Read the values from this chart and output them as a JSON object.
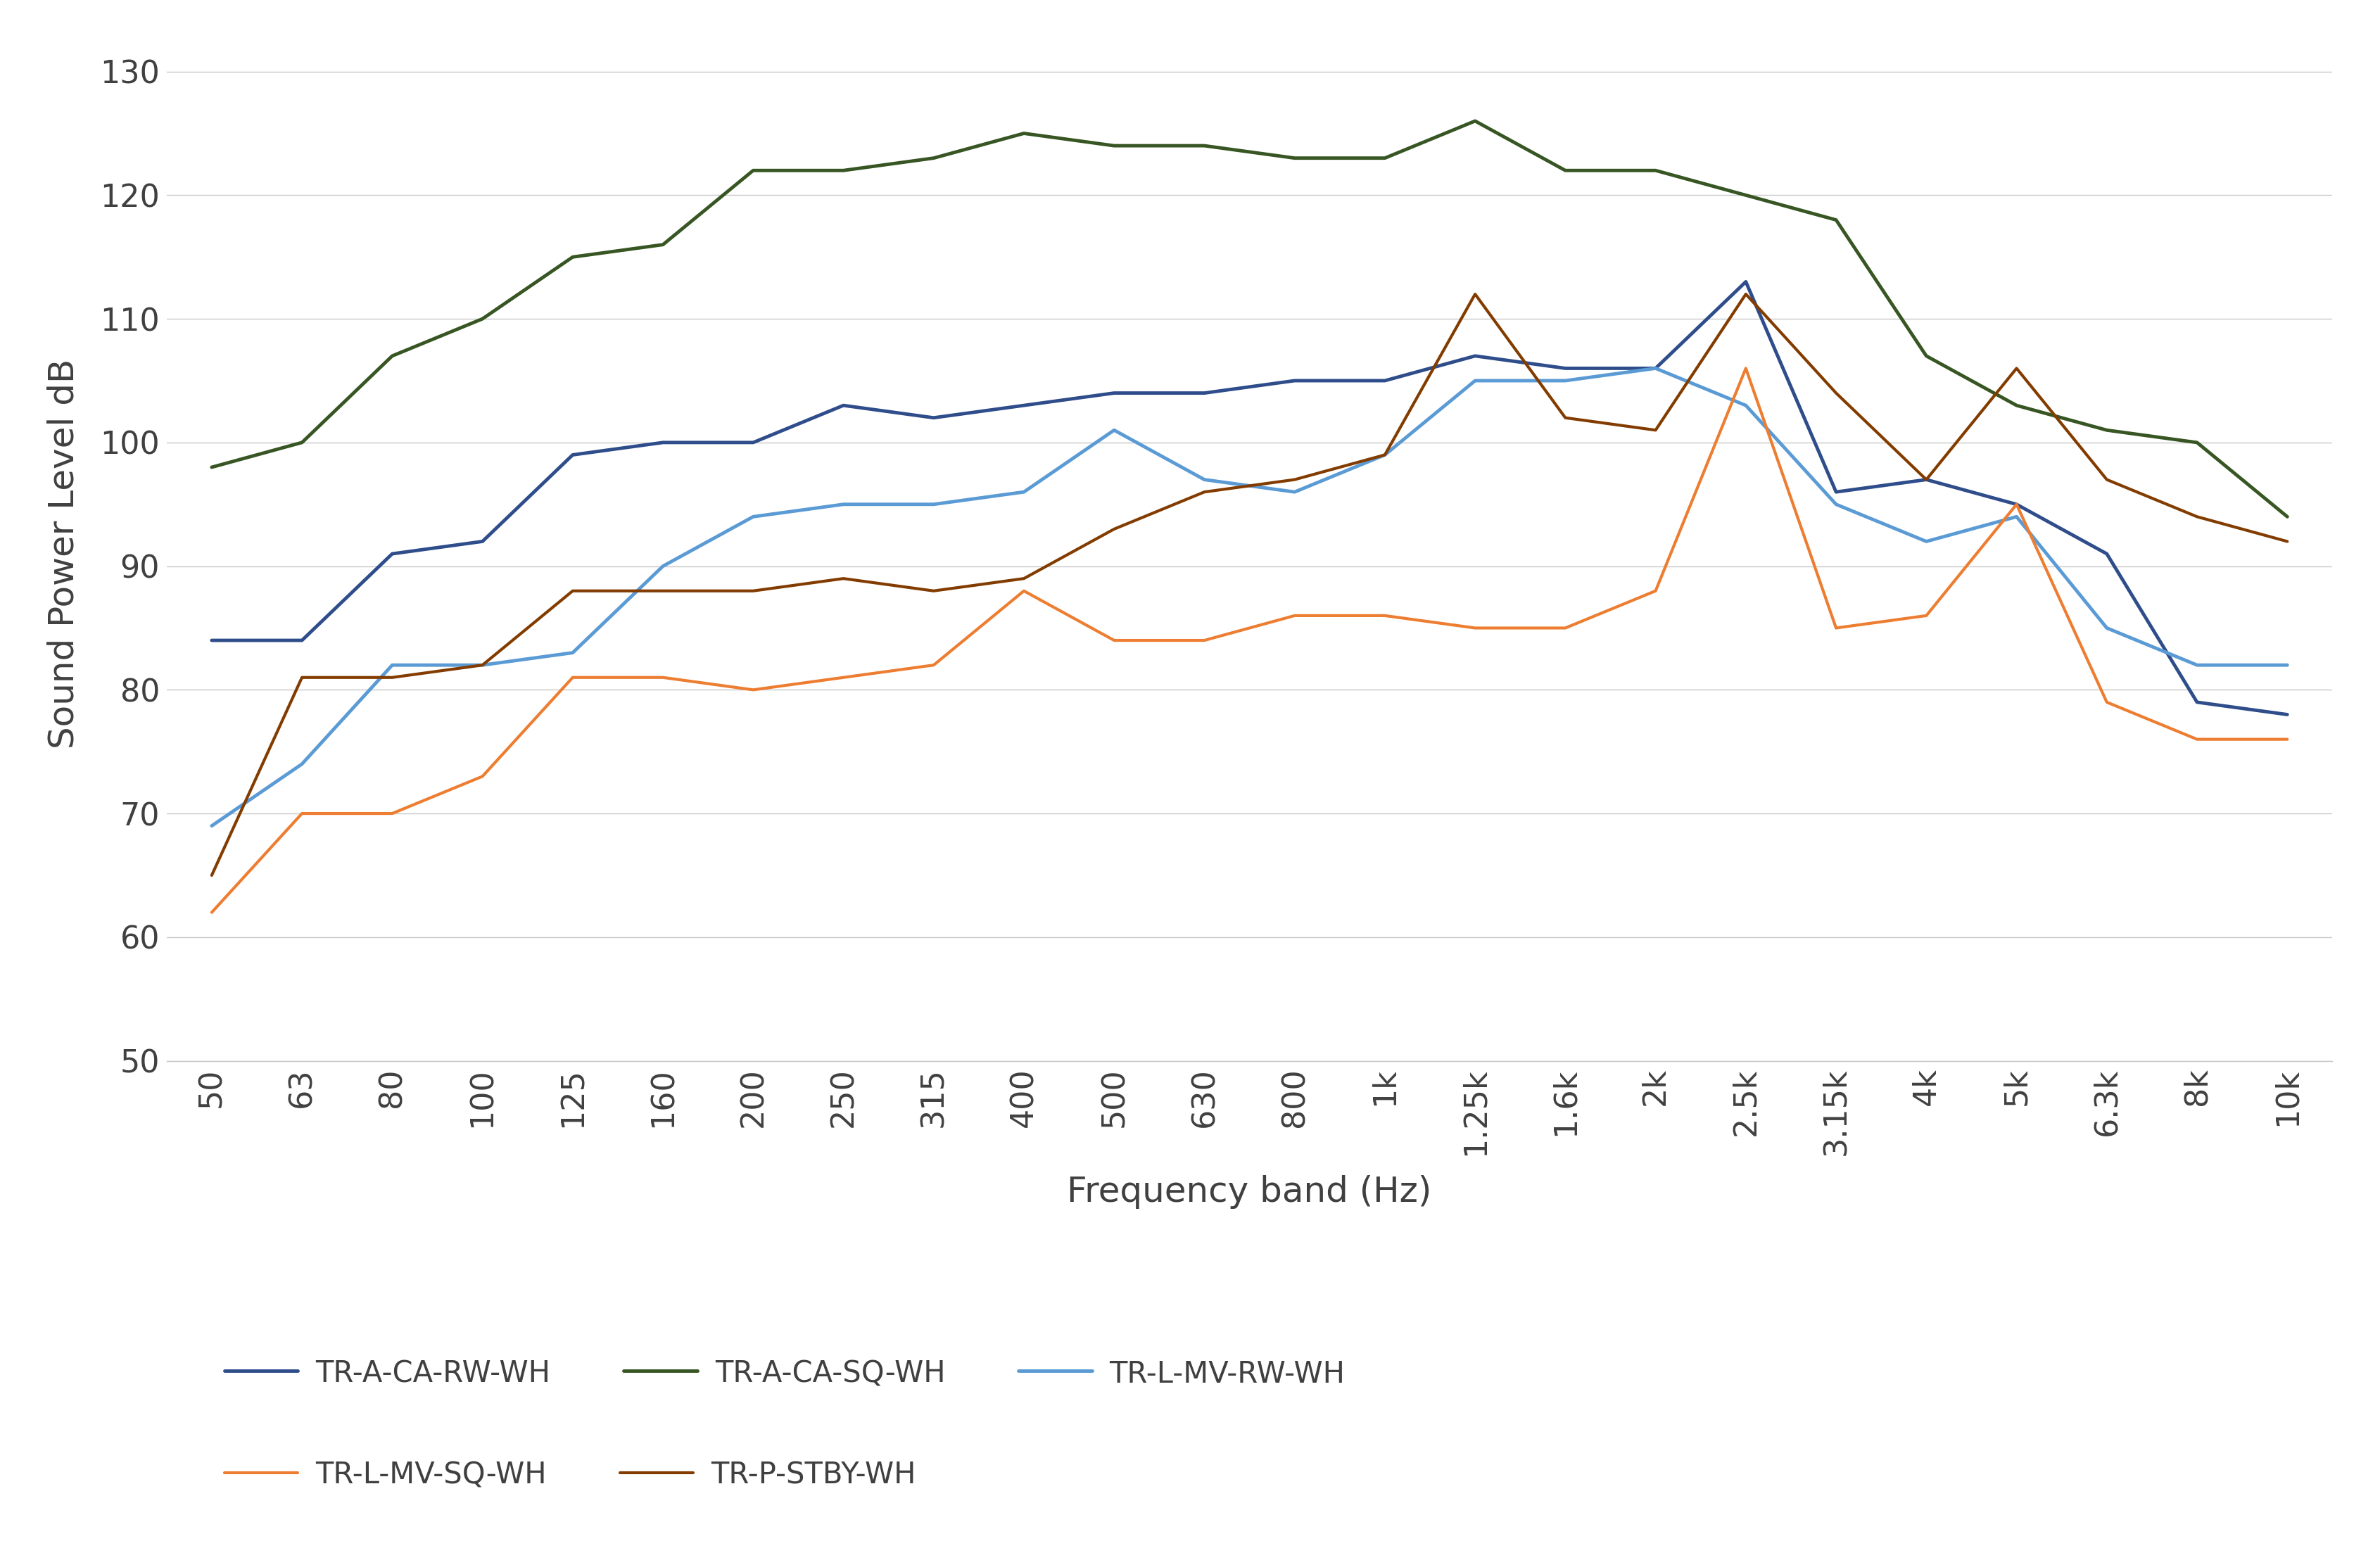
{
  "title": "",
  "xlabel": "Frequency band (Hz)",
  "ylabel": "Sound Power Level dB",
  "x_labels": [
    "50",
    "63",
    "80",
    "100",
    "125",
    "160",
    "200",
    "250",
    "315",
    "400",
    "500",
    "630",
    "800",
    "1k",
    "1.25k",
    "1.6k",
    "2k",
    "2.5k",
    "3.15k",
    "4k",
    "5k",
    "6.3k",
    "8k",
    "10k"
  ],
  "ylim": [
    50,
    132
  ],
  "yticks": [
    50,
    60,
    70,
    80,
    90,
    100,
    110,
    120,
    130
  ],
  "series": [
    {
      "label": "TR-A-CA-RW-WH",
      "color": "#2E4D8A",
      "linewidth": 3.5,
      "values": [
        84,
        84,
        91,
        92,
        99,
        100,
        100,
        103,
        102,
        103,
        104,
        104,
        105,
        105,
        107,
        106,
        106,
        113,
        96,
        97,
        95,
        91,
        79,
        78
      ]
    },
    {
      "label": "TR-A-CA-SQ-WH",
      "color": "#375623",
      "linewidth": 3.5,
      "values": [
        98,
        100,
        107,
        110,
        115,
        116,
        122,
        122,
        123,
        125,
        124,
        124,
        123,
        123,
        126,
        122,
        122,
        120,
        118,
        107,
        103,
        101,
        100,
        94
      ]
    },
    {
      "label": "TR-L-MV-RW-WH",
      "color": "#5B9BD5",
      "linewidth": 3.5,
      "values": [
        69,
        74,
        82,
        82,
        83,
        90,
        94,
        95,
        95,
        96,
        101,
        97,
        96,
        99,
        105,
        105,
        106,
        103,
        95,
        92,
        94,
        85,
        82,
        82
      ]
    },
    {
      "label": "TR-L-MV-SQ-WH",
      "color": "#ED7D31",
      "linewidth": 3.0,
      "values": [
        62,
        70,
        70,
        73,
        81,
        81,
        80,
        81,
        82,
        88,
        84,
        84,
        86,
        86,
        85,
        85,
        88,
        106,
        85,
        86,
        95,
        79,
        76,
        76
      ]
    },
    {
      "label": "TR-P-STBY-WH",
      "color": "#833C00",
      "linewidth": 3.0,
      "values": [
        65,
        81,
        81,
        82,
        88,
        88,
        88,
        89,
        88,
        89,
        93,
        96,
        97,
        99,
        112,
        102,
        101,
        112,
        104,
        97,
        106,
        97,
        94,
        92
      ]
    }
  ],
  "background_color": "#FFFFFF",
  "grid_color": "#C8C8C8",
  "label_fontsize": 36,
  "tick_fontsize": 32,
  "legend_fontsize": 30
}
